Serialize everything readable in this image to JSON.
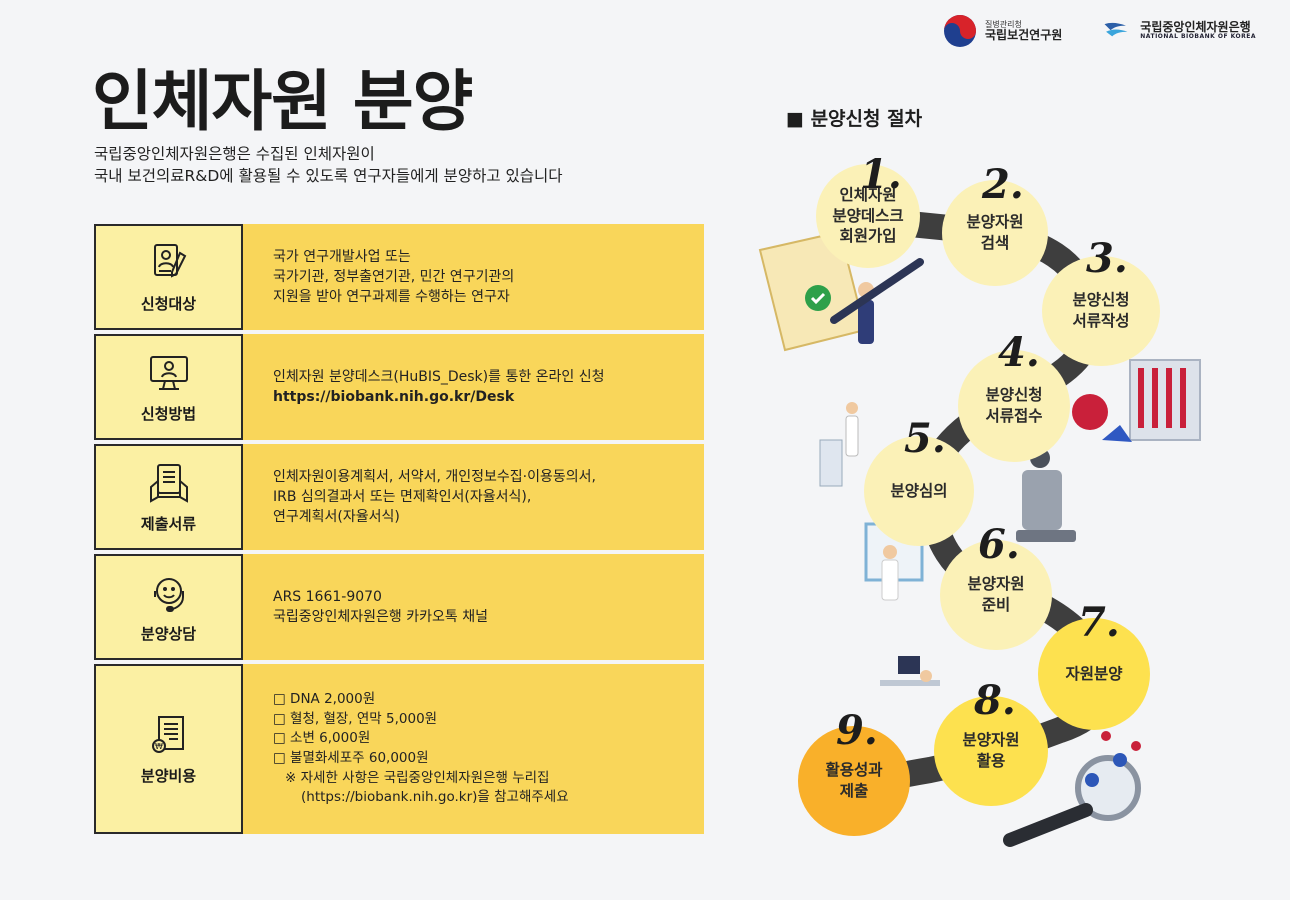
{
  "logos": {
    "kdca": {
      "sub": "질병관리청",
      "main": "국립보건연구원"
    },
    "nbk": {
      "main": "국립중앙인체자원은행",
      "en": "NATIONAL BIOBANK OF KOREA"
    }
  },
  "title": "인체자원 분양",
  "intro": [
    "국립중앙인체자원은행은 수집된 인체자원이",
    "국내 보건의료R&D에 활용될 수 있도록 연구자들에게 분양하고 있습니다"
  ],
  "rows": [
    {
      "label": "신청대상",
      "icon": "applicant-icon",
      "lines": [
        "국가 연구개발사업 또는",
        "국가기관, 정부출연기관, 민간 연구기관의",
        "지원을 받아 연구과제를 수행하는 연구자"
      ]
    },
    {
      "label": "신청방법",
      "icon": "computer-icon",
      "lines": [
        "인체자원 분양데스크(HuBIS_Desk)를 통한 온라인 신청",
        "https://biobank.nih.go.kr/Desk"
      ]
    },
    {
      "label": "제출서류",
      "icon": "documents-icon",
      "lines": [
        "인체자원이용계획서, 서약서, 개인정보수집·이용동의서,",
        "IRB 심의결과서 또는 면제확인서(자율서식),",
        "연구계획서(자율서식)"
      ]
    },
    {
      "label": "분양상담",
      "icon": "headset-icon",
      "lines": [
        "ARS 1661-9070",
        "국립중앙인체자원은행 카카오톡 채널"
      ]
    },
    {
      "label": "분양비용",
      "icon": "bill-icon",
      "lines": [
        "□ DNA 2,000원",
        "□ 혈청, 혈장, 연막 5,000원",
        "□ 소변 6,000원",
        "□ 불멸화세포주 60,000원",
        "※ 자세한 사항은 국립중앙인체자원은행 누리집",
        "(https://biobank.nih.go.kr)을 참고해주세요"
      ]
    }
  ],
  "procedure": {
    "title": "■ 분양신청 절차",
    "steps": [
      {
        "num": "1.",
        "label": "인체자원\n분양데스크\n회원가입"
      },
      {
        "num": "2.",
        "label": "분양자원\n검색"
      },
      {
        "num": "3.",
        "label": "분양신청\n서류작성"
      },
      {
        "num": "4.",
        "label": "분양신청\n서류접수"
      },
      {
        "num": "5.",
        "label": "분양심의"
      },
      {
        "num": "6.",
        "label": "분양자원\n준비"
      },
      {
        "num": "7.",
        "label": "자원분양"
      },
      {
        "num": "8.",
        "label": "분양자원\n활용"
      },
      {
        "num": "9.",
        "label": "활용성과\n제출"
      }
    ]
  }
}
